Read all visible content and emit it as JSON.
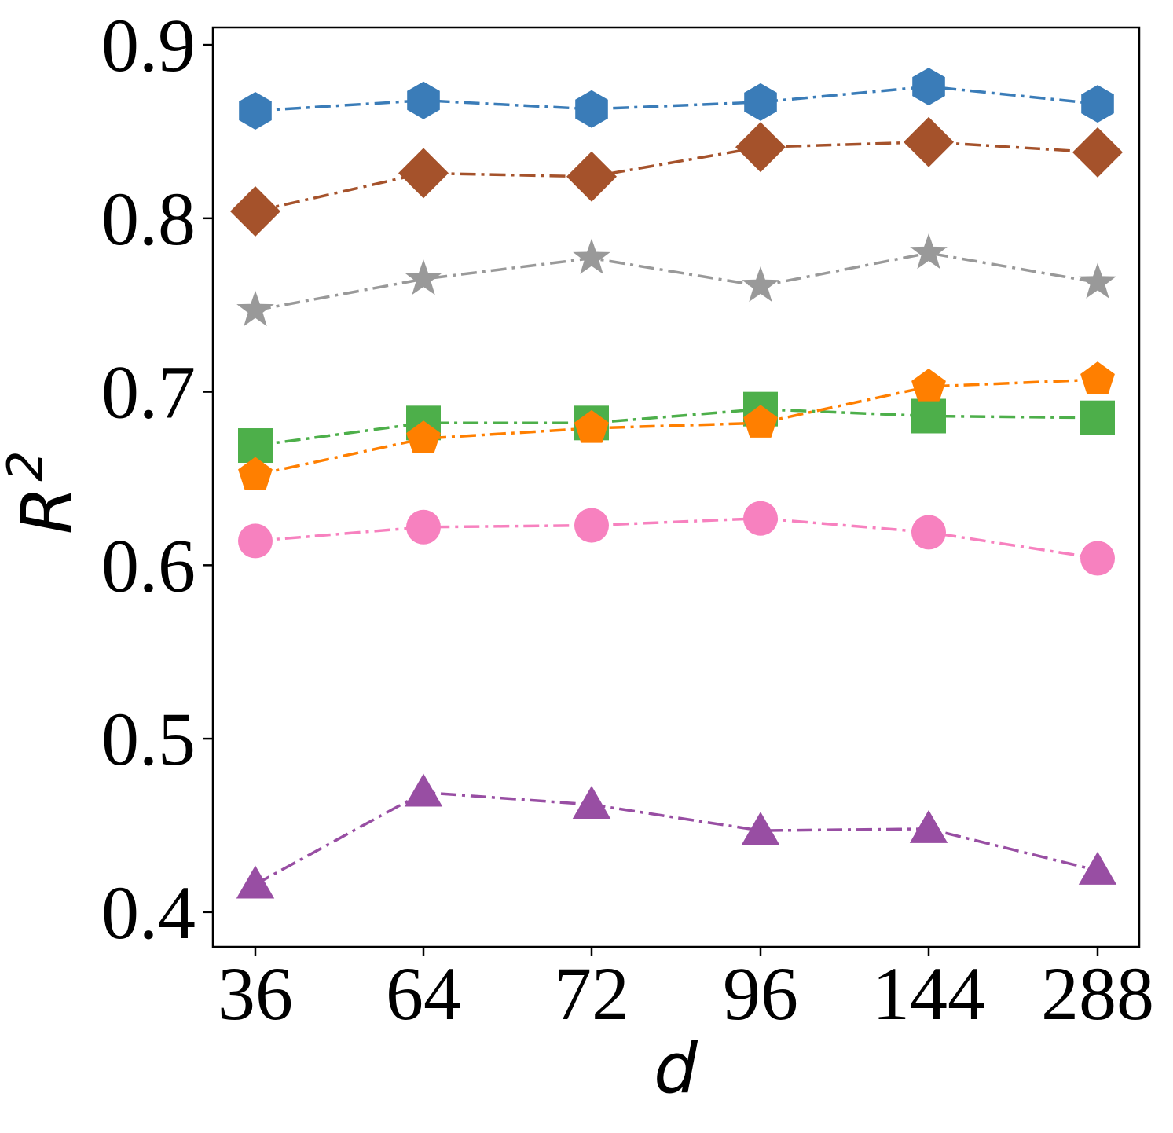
{
  "chart_data": {
    "type": "line",
    "title": "",
    "xlabel": "d",
    "ylabel": "R",
    "ylabel_superscript": "2",
    "categories": [
      "36",
      "64",
      "72",
      "96",
      "144",
      "288"
    ],
    "ylim": [
      0.38,
      0.91
    ],
    "yticks": [
      0.4,
      0.5,
      0.6,
      0.7,
      0.8,
      0.9
    ],
    "ytick_labels": [
      "0.4",
      "0.5",
      "0.6",
      "0.7",
      "0.8",
      "0.9"
    ],
    "grid": false,
    "legend": "none",
    "series": [
      {
        "name": "blue-hexagon",
        "color": "#3A7CB8",
        "marker": "hexagon",
        "values": [
          0.862,
          0.868,
          0.863,
          0.867,
          0.876,
          0.866
        ]
      },
      {
        "name": "brown-diamond",
        "color": "#A5522B",
        "marker": "diamond",
        "values": [
          0.804,
          0.826,
          0.824,
          0.841,
          0.844,
          0.838
        ]
      },
      {
        "name": "gray-star",
        "color": "#999999",
        "marker": "star",
        "values": [
          0.747,
          0.765,
          0.777,
          0.761,
          0.78,
          0.763
        ]
      },
      {
        "name": "green-square",
        "color": "#4DAF4A",
        "marker": "square",
        "values": [
          0.669,
          0.682,
          0.682,
          0.69,
          0.686,
          0.685
        ]
      },
      {
        "name": "orange-pentagon",
        "color": "#FF7F00",
        "marker": "pentagon",
        "values": [
          0.652,
          0.673,
          0.679,
          0.682,
          0.703,
          0.707
        ]
      },
      {
        "name": "pink-circle",
        "color": "#F781BF",
        "marker": "circle",
        "values": [
          0.614,
          0.622,
          0.623,
          0.627,
          0.619,
          0.604
        ]
      },
      {
        "name": "purple-triangle",
        "color": "#984EA3",
        "marker": "triangle",
        "values": [
          0.416,
          0.469,
          0.462,
          0.447,
          0.448,
          0.424
        ]
      }
    ]
  }
}
